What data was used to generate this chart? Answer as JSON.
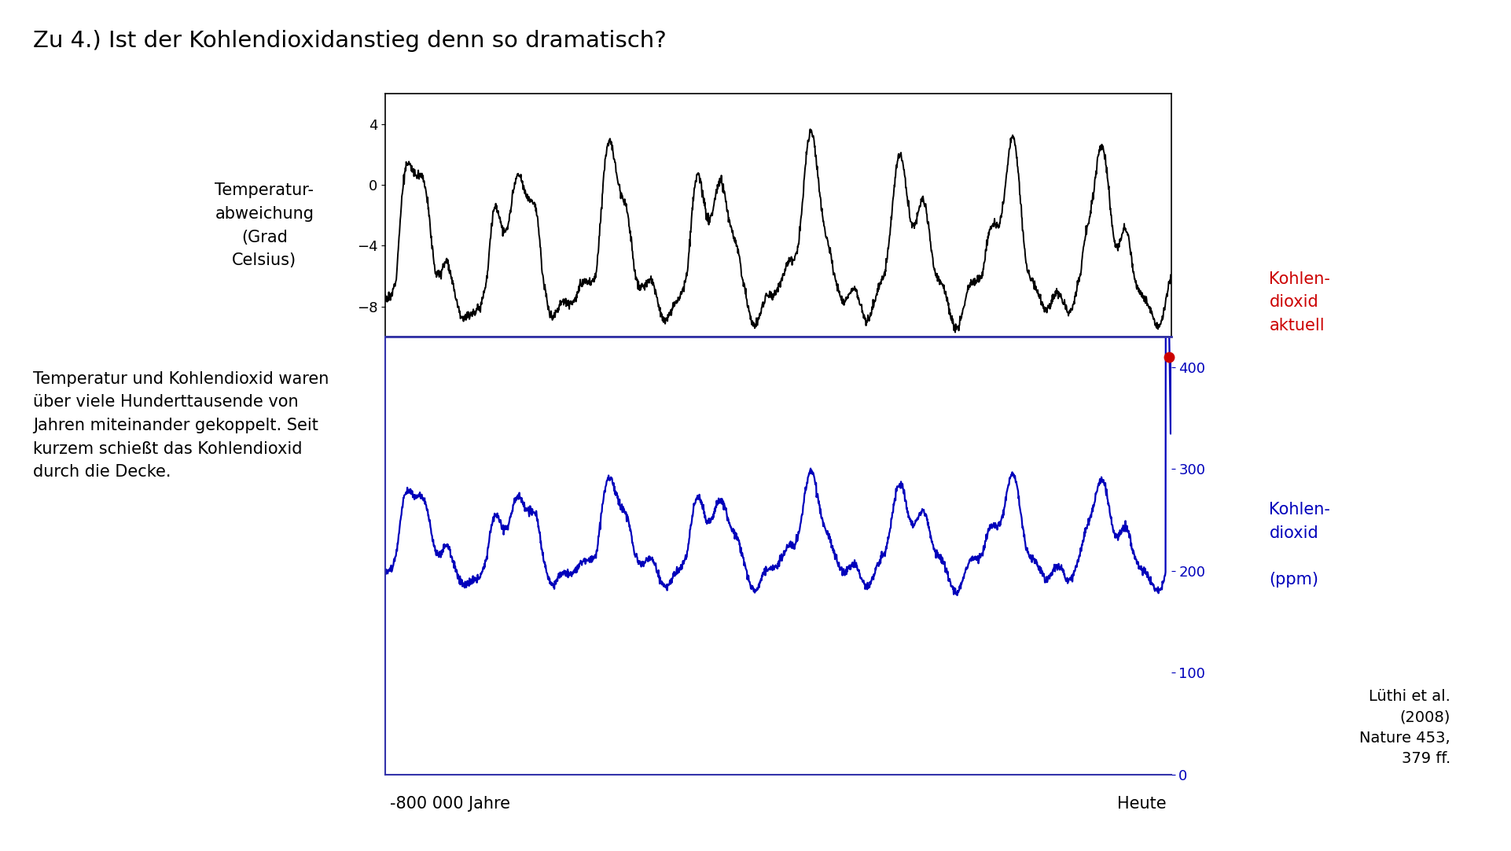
{
  "title": "Zu 4.) Ist der Kohlendioxidanstieg denn so dramatisch?",
  "title_fontsize": 21,
  "temp_ylabel": "Temperatur-\nabweichung\n(Grad\nCelsius)",
  "co2_ylabel": "Kohlen-\ndioxid\n\n(ppm)",
  "co2_current_label": "Kohlen-\ndioxid\naktuell",
  "xlabel_left": "-800 000 Jahre",
  "xlabel_right": "Heute",
  "reference_text": "Lüthi et al.\n(2008)\nNature 453,\n379 ff.",
  "body_text": "Temperatur und Kohlendioxid waren\nüber viele Hunderttausende von\nJahren miteinander gekoppelt. Seit\nkurzem schießt das Kohlendioxid\ndurch die Decke.",
  "temp_ylim": [
    -10,
    6
  ],
  "temp_yticks": [
    -8,
    -4,
    0,
    4
  ],
  "co2_ylim": [
    0,
    430
  ],
  "co2_yticks": [
    0,
    100,
    200,
    300,
    400
  ],
  "co2_current_value": 410,
  "background_color": "#ffffff",
  "temp_line_color": "#000000",
  "co2_line_color": "#0000bb",
  "co2_dot_color": "#cc0000",
  "co2_label_color": "#0000bb",
  "co2_current_label_color": "#cc0000",
  "spine_color": "#3333aa",
  "temp_linewidth": 1.4,
  "co2_linewidth": 1.6
}
